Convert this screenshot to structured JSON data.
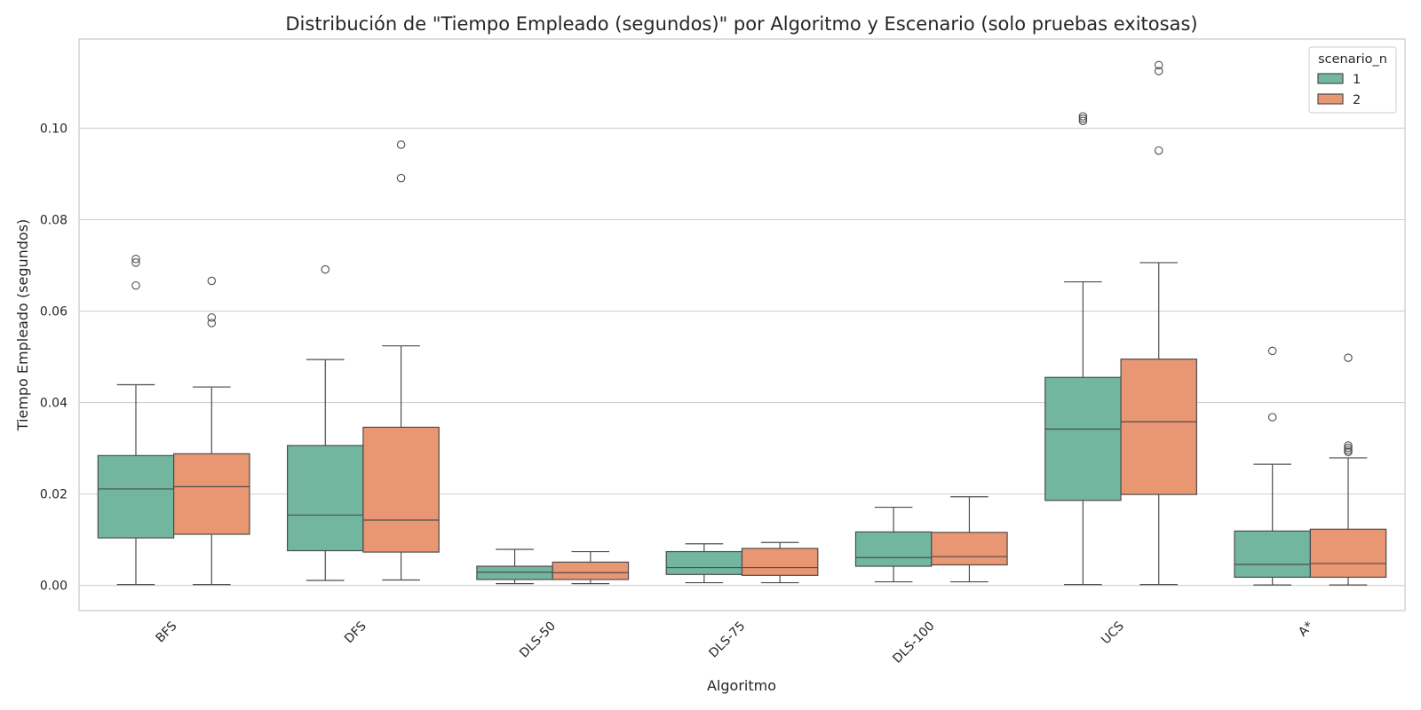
{
  "chart_data": {
    "type": "boxplot",
    "title": "Distribución de \"Tiempo Empleado (segundos)\" por Algoritmo y Escenario (solo pruebas exitosas)",
    "xlabel": "Algoritmo",
    "ylabel": "Tiempo Empleado (segundos)",
    "ylim": [
      -0.0055,
      0.1195
    ],
    "yticks": [
      "0.00",
      "0.02",
      "0.04",
      "0.06",
      "0.08",
      "0.10"
    ],
    "grid": "horizontal",
    "legend": {
      "title": "scenario_n",
      "placement": "top-right"
    },
    "categories": [
      "BFS",
      "DFS",
      "DLS-50",
      "DLS-75",
      "DLS-100",
      "UCS",
      "A*"
    ],
    "series": [
      {
        "name": "1",
        "color": "#72b6a0",
        "boxes": [
          {
            "whislo": 0.0002,
            "q1": 0.0104,
            "med": 0.0211,
            "q3": 0.0284,
            "whishi": 0.0439,
            "fliers": [
              0.0714,
              0.0706,
              0.0656
            ]
          },
          {
            "whislo": 0.0011,
            "q1": 0.0076,
            "med": 0.0154,
            "q3": 0.0306,
            "whishi": 0.0494,
            "fliers": [
              0.0691
            ]
          },
          {
            "whislo": 0.0004,
            "q1": 0.0013,
            "med": 0.0029,
            "q3": 0.0042,
            "whishi": 0.0079,
            "fliers": []
          },
          {
            "whislo": 0.0006,
            "q1": 0.0024,
            "med": 0.0039,
            "q3": 0.0074,
            "whishi": 0.0091,
            "fliers": []
          },
          {
            "whislo": 0.0008,
            "q1": 0.0042,
            "med": 0.0061,
            "q3": 0.0117,
            "whishi": 0.0171,
            "fliers": []
          },
          {
            "whislo": 0.0002,
            "q1": 0.0186,
            "med": 0.0342,
            "q3": 0.0455,
            "whishi": 0.0664,
            "fliers": [
              0.1026,
              0.1021,
              0.1016
            ]
          },
          {
            "whislo": 0.0001,
            "q1": 0.0018,
            "med": 0.0046,
            "q3": 0.0119,
            "whishi": 0.0265,
            "fliers": [
              0.0513,
              0.0368
            ]
          }
        ]
      },
      {
        "name": "2",
        "color": "#e99673",
        "boxes": [
          {
            "whislo": 0.0002,
            "q1": 0.0112,
            "med": 0.0216,
            "q3": 0.0288,
            "whishi": 0.0434,
            "fliers": [
              0.0666,
              0.0586,
              0.0574
            ]
          },
          {
            "whislo": 0.0012,
            "q1": 0.0073,
            "med": 0.0143,
            "q3": 0.0346,
            "whishi": 0.0524,
            "fliers": [
              0.0964,
              0.0891
            ]
          },
          {
            "whislo": 0.0004,
            "q1": 0.0013,
            "med": 0.0028,
            "q3": 0.0051,
            "whishi": 0.0074,
            "fliers": []
          },
          {
            "whislo": 0.0006,
            "q1": 0.0022,
            "med": 0.0039,
            "q3": 0.0081,
            "whishi": 0.0094,
            "fliers": []
          },
          {
            "whislo": 0.0008,
            "q1": 0.0045,
            "med": 0.0063,
            "q3": 0.0116,
            "whishi": 0.0194,
            "fliers": []
          },
          {
            "whislo": 0.0002,
            "q1": 0.0199,
            "med": 0.0358,
            "q3": 0.0495,
            "whishi": 0.0706,
            "fliers": [
              0.1138,
              0.1125,
              0.0951
            ]
          },
          {
            "whislo": 0.0001,
            "q1": 0.0018,
            "med": 0.0048,
            "q3": 0.0123,
            "whishi": 0.0279,
            "fliers": [
              0.0498,
              0.0306,
              0.0301,
              0.0296,
              0.0292
            ]
          }
        ]
      }
    ]
  }
}
